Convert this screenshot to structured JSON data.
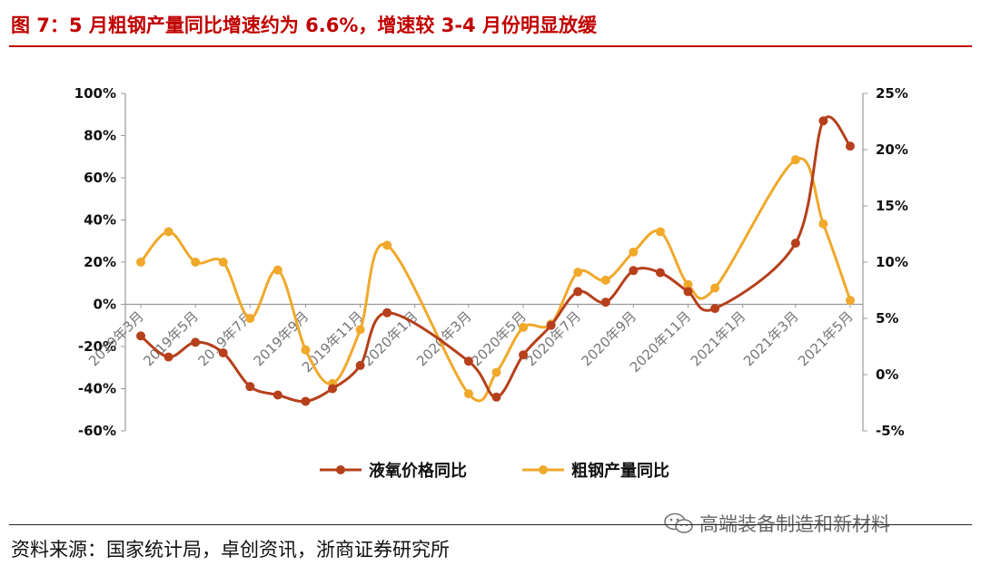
{
  "title": "图 7：5 月粗钢产量同比增速约为 6.6%，增速较 3-4 月份明显放缓",
  "source": "资料来源：国家统计局，卓创资讯，浙商证券研究所",
  "watermark": "高端装备制造和新材料",
  "watermark_icon": "wechat-icon",
  "colors": {
    "title": "#c00000",
    "series_lox": "#b5401b",
    "series_steel": "#f0a92b",
    "axis": "#999999"
  },
  "chart_data": {
    "type": "line",
    "x_tick_labels": [
      "2019年3月",
      "2019年5月",
      "2019年7月",
      "2019年9月",
      "2019年11月",
      "2020年1月",
      "2020年3月",
      "2020年5月",
      "2020年7月",
      "2020年9月",
      "2020年11月",
      "2021年1月",
      "2021年3月",
      "2021年5月"
    ],
    "y_left": {
      "ticks": [
        "100%",
        "80%",
        "60%",
        "40%",
        "20%",
        "0%",
        "-20%",
        "-40%",
        "-60%"
      ],
      "ylim": [
        -60,
        100
      ]
    },
    "y_right": {
      "ticks": [
        "25%",
        "20%",
        "15%",
        "10%",
        "5%",
        "0%",
        "-5%"
      ],
      "ylim": [
        -5,
        25
      ]
    },
    "legend_position": "bottom",
    "series": [
      {
        "name": "液氧价格同比",
        "axis": "left",
        "points": [
          {
            "x": "2019-03",
            "y": -15
          },
          {
            "x": "2019-04",
            "y": -25
          },
          {
            "x": "2019-05",
            "y": -18
          },
          {
            "x": "2019-06",
            "y": -23
          },
          {
            "x": "2019-07",
            "y": -39
          },
          {
            "x": "2019-08",
            "y": -43
          },
          {
            "x": "2019-09",
            "y": -46
          },
          {
            "x": "2019-10",
            "y": -40
          },
          {
            "x": "2019-11",
            "y": -29
          },
          {
            "x": "2019-12",
            "y": -4
          },
          {
            "x": "2020-03",
            "y": -27
          },
          {
            "x": "2020-04",
            "y": -44
          },
          {
            "x": "2020-05",
            "y": -24
          },
          {
            "x": "2020-06",
            "y": -10
          },
          {
            "x": "2020-07",
            "y": 6
          },
          {
            "x": "2020-08",
            "y": 1
          },
          {
            "x": "2020-09",
            "y": 16
          },
          {
            "x": "2020-10",
            "y": 15
          },
          {
            "x": "2020-11",
            "y": 6
          },
          {
            "x": "2020-12",
            "y": -2
          },
          {
            "x": "2021-03",
            "y": 29
          },
          {
            "x": "2021-04",
            "y": 87
          },
          {
            "x": "2021-05",
            "y": 75
          }
        ]
      },
      {
        "name": "粗钢产量同比",
        "axis": "right",
        "points": [
          {
            "x": "2019-03",
            "y": 10
          },
          {
            "x": "2019-04",
            "y": 12.7
          },
          {
            "x": "2019-05",
            "y": 10
          },
          {
            "x": "2019-06",
            "y": 10
          },
          {
            "x": "2019-07",
            "y": 5
          },
          {
            "x": "2019-08",
            "y": 9.3
          },
          {
            "x": "2019-09",
            "y": 2.2
          },
          {
            "x": "2019-10",
            "y": -0.8
          },
          {
            "x": "2019-11",
            "y": 4
          },
          {
            "x": "2019-12",
            "y": 11.5
          },
          {
            "x": "2020-03",
            "y": -1.7
          },
          {
            "x": "2020-04",
            "y": 0.2
          },
          {
            "x": "2020-05",
            "y": 4.2
          },
          {
            "x": "2020-06",
            "y": 4.5
          },
          {
            "x": "2020-07",
            "y": 9.1
          },
          {
            "x": "2020-08",
            "y": 8.4
          },
          {
            "x": "2020-09",
            "y": 10.9
          },
          {
            "x": "2020-10",
            "y": 12.7
          },
          {
            "x": "2020-11",
            "y": 8
          },
          {
            "x": "2020-12",
            "y": 7.7
          },
          {
            "x": "2021-03",
            "y": 19.1
          },
          {
            "x": "2021-04",
            "y": 13.4
          },
          {
            "x": "2021-05",
            "y": 6.6
          }
        ]
      }
    ]
  }
}
